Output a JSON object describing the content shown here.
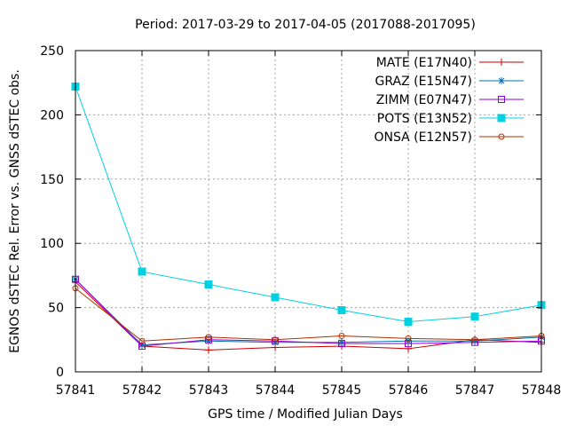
{
  "chart_data": {
    "type": "line",
    "title": "Period: 2017-03-29 to 2017-04-05 (2017088-2017095)",
    "xlabel": "GPS time / Modified Julian Days",
    "ylabel": "EGNOS dSTEC Rel. Error vs. GNSS dSTEC obs.",
    "xlim": [
      57841,
      57848
    ],
    "ylim": [
      0,
      250
    ],
    "x_ticks": [
      57841,
      57842,
      57843,
      57844,
      57845,
      57846,
      57847,
      57848
    ],
    "y_ticks": [
      0,
      50,
      100,
      150,
      200,
      250
    ],
    "grid": true,
    "legend_position": "top-right",
    "x": [
      57841,
      57842,
      57843,
      57844,
      57845,
      57846,
      57847,
      57848
    ],
    "series": [
      {
        "name": "MATE (E17N40)",
        "color": "#cc0000",
        "marker": "plus",
        "values": [
          70,
          20,
          17,
          19,
          20,
          18,
          25,
          23
        ]
      },
      {
        "name": "GRAZ (E15N47)",
        "color": "#0072b2",
        "marker": "star",
        "values": [
          72,
          21,
          24,
          23,
          23,
          24,
          24,
          27
        ]
      },
      {
        "name": "ZIMM (E07N47)",
        "color": "#9400d3",
        "marker": "open-square",
        "values": [
          72,
          20,
          25,
          24,
          22,
          22,
          23,
          24
        ]
      },
      {
        "name": "POTS (E13N52)",
        "color": "#00d0e0",
        "marker": "filled-square",
        "values": [
          222,
          78,
          68,
          58,
          48,
          39,
          43,
          52
        ]
      },
      {
        "name": "ONSA (E12N57)",
        "color": "#b03000",
        "marker": "open-circle",
        "values": [
          65,
          24,
          27,
          25,
          28,
          26,
          25,
          28
        ]
      }
    ]
  }
}
